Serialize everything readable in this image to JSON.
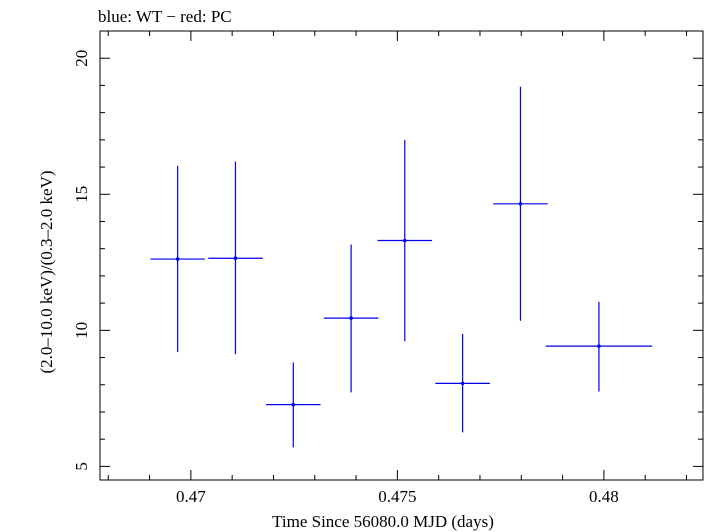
{
  "chart_data": {
    "type": "scatter",
    "title": "blue: WT − red: PC",
    "xlabel": "Time Since 56080.0 MJD (days)",
    "ylabel": "(2.0–10.0 keV)/(0.3–2.0 keV)",
    "xlim": [
      0.4678,
      0.4824
    ],
    "ylim": [
      4.5,
      21
    ],
    "x_ticks": [
      0.47,
      0.475,
      0.48
    ],
    "x_tick_labels": [
      "0.47",
      "0.475",
      "0.48"
    ],
    "y_ticks": [
      5,
      10,
      15,
      20
    ],
    "y_tick_labels": [
      "5",
      "10",
      "15",
      "20"
    ],
    "grid": false,
    "series": [
      {
        "color": "#0000ee",
        "points": [
          {
            "x": 0.46968,
            "y": 12.62,
            "xerr": 0.00066,
            "ylo": 9.2,
            "yhi": 16.05
          },
          {
            "x": 0.47108,
            "y": 12.65,
            "xerr": 0.00066,
            "ylo": 9.12,
            "yhi": 16.2
          },
          {
            "x": 0.47248,
            "y": 7.27,
            "xerr": 0.00066,
            "ylo": 5.7,
            "yhi": 8.82
          },
          {
            "x": 0.47388,
            "y": 10.45,
            "xerr": 0.00066,
            "ylo": 7.72,
            "yhi": 13.15
          },
          {
            "x": 0.47518,
            "y": 13.3,
            "xerr": 0.00066,
            "ylo": 9.6,
            "yhi": 17.0
          },
          {
            "x": 0.47658,
            "y": 8.05,
            "xerr": 0.00066,
            "ylo": 6.25,
            "yhi": 9.87
          },
          {
            "x": 0.47798,
            "y": 14.65,
            "xerr": 0.00066,
            "ylo": 10.35,
            "yhi": 18.95
          },
          {
            "x": 0.47988,
            "y": 9.42,
            "xerr": 0.00129,
            "ylo": 7.75,
            "yhi": 11.05
          }
        ]
      }
    ]
  }
}
